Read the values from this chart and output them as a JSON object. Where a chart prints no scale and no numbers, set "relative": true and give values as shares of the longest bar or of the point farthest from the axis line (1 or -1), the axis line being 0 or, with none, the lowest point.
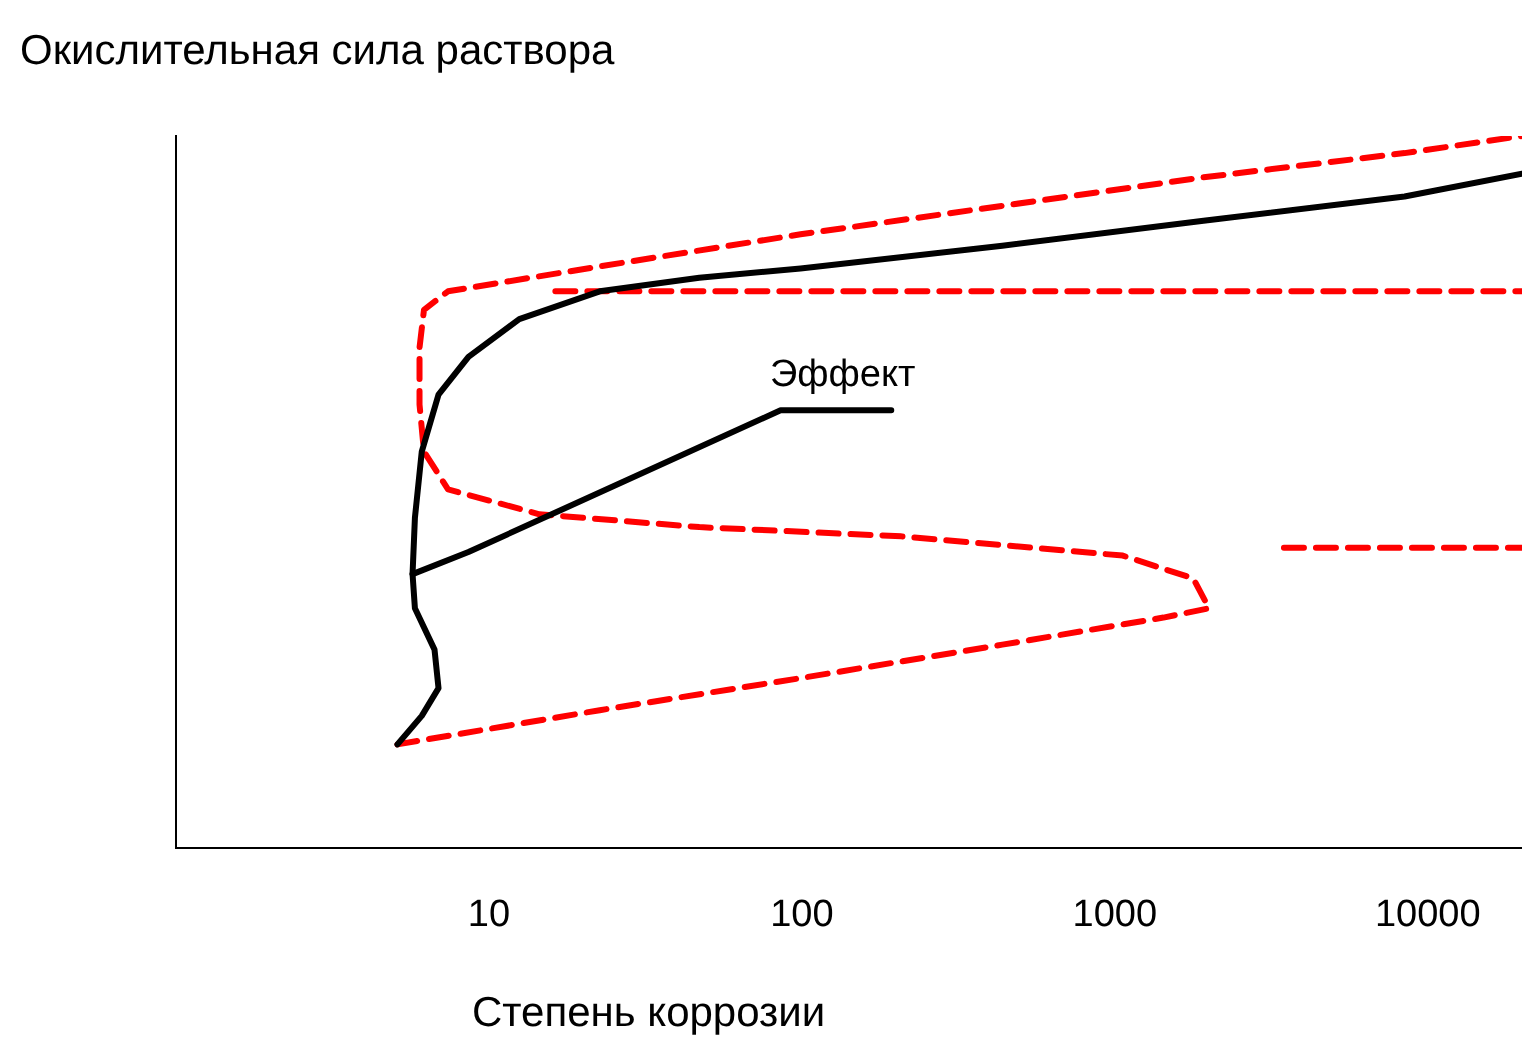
{
  "chart_data": {
    "type": "line",
    "relative": true,
    "ylabel": "Окислительная сила раствора",
    "xlabel": "Степень коррозии",
    "log": "x",
    "xlim": [
      1,
      20000
    ],
    "xticks": [
      10,
      100,
      1000,
      10000
    ],
    "grid": false,
    "legend": false,
    "marker": "none",
    "annotations": [
      "Эффект"
    ],
    "series": [
      {
        "color": "#000000",
        "line_style": "solid",
        "x": [
          5.1,
          6.1,
          6.9,
          6.7,
          5.8,
          5.7,
          5.8,
          6.1,
          6.9,
          8.6,
          12.5,
          22.6,
          47,
          99,
          437,
          1920,
          8430,
          20000
        ],
        "values": [
          0.146,
          0.186,
          0.225,
          0.279,
          0.337,
          0.385,
          0.464,
          0.557,
          0.637,
          0.69,
          0.743,
          0.782,
          0.801,
          0.814,
          0.846,
          0.881,
          0.915,
          0.947
        ]
      },
      {
        "color": "#000000",
        "line_style": "solid",
        "x": [
          5.7,
          8.6,
          85.5,
          193
        ],
        "values": [
          0.385,
          0.416,
          0.615,
          0.615
        ]
      },
      {
        "color": "#ff0000",
        "line_style": "dashed",
        "x": [
          5.1,
          22.6,
          99,
          437,
          1430,
          2000,
          1780,
          1060,
          208,
          47,
          14.5,
          7.4,
          6.2,
          6.0,
          6.0,
          6.2,
          7.4,
          22.6,
          99,
          437,
          1920,
          8430,
          20000
        ],
        "values": [
          0.146,
          0.194,
          0.239,
          0.286,
          0.324,
          0.337,
          0.379,
          0.411,
          0.438,
          0.451,
          0.469,
          0.504,
          0.557,
          0.623,
          0.703,
          0.756,
          0.782,
          0.817,
          0.862,
          0.902,
          0.942,
          0.976,
          1
        ]
      },
      {
        "color": "#ff0000",
        "line_style": "dashed",
        "x": [
          16.3,
          20000
        ],
        "values": [
          0.782,
          0.782
        ]
      },
      {
        "color": "#ff0000",
        "line_style": "dashed",
        "x": [
          3470,
          20000
        ],
        "values": [
          0.422,
          0.422
        ]
      }
    ]
  }
}
